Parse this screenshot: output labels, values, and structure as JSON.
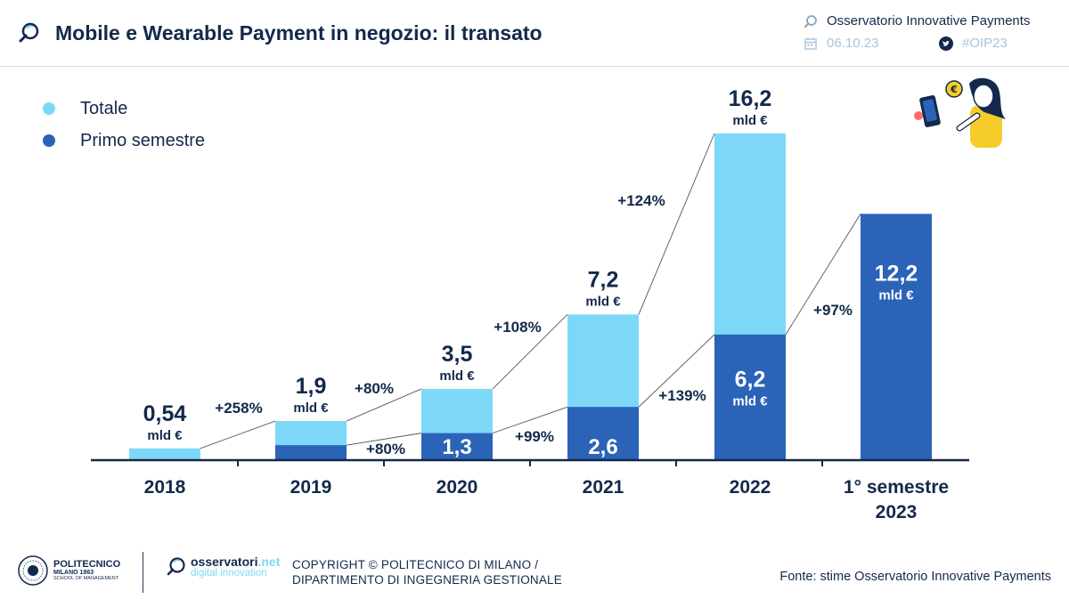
{
  "header": {
    "title": "Mobile e Wearable Payment in negozio: il transato",
    "organization": "Osservatorio Innovative Payments",
    "date": "06.10.23",
    "hashtag": "#OIP23"
  },
  "legend": [
    {
      "label": "Totale",
      "color": "#7dd8f8"
    },
    {
      "label": "Primo semestre",
      "color": "#2a63b8"
    }
  ],
  "colors": {
    "totale": "#7dd8f8",
    "semestre": "#2a63b8",
    "text": "#13294b",
    "axis": "#13294b",
    "connector": "#555555"
  },
  "chart_data": {
    "type": "bar",
    "title": "Mobile e Wearable Payment in negozio: il transato",
    "unit_label": "mld €",
    "categories": [
      "2018",
      "2019",
      "2020",
      "2021",
      "2022",
      "1° semestre 2023"
    ],
    "series": [
      {
        "name": "Totale",
        "values": [
          0.54,
          1.9,
          3.5,
          7.2,
          16.2,
          null
        ]
      },
      {
        "name": "Primo semestre",
        "values": [
          null,
          0.7,
          1.3,
          2.6,
          6.2,
          12.2
        ]
      }
    ],
    "total_labels": [
      "0,54",
      "1,9",
      "3,5",
      "7,2",
      "16,2",
      null
    ],
    "semester_labels": [
      null,
      null,
      "1,3",
      "2,6",
      "6,2",
      "12,2"
    ],
    "growth_totale": [
      {
        "from": 0,
        "to": 1,
        "label": "+258%"
      },
      {
        "from": 1,
        "to": 2,
        "label": "+80%"
      },
      {
        "from": 2,
        "to": 3,
        "label": "+108%"
      },
      {
        "from": 3,
        "to": 4,
        "label": "+124%"
      }
    ],
    "growth_semestre": [
      {
        "from": 1,
        "to": 2,
        "label": "+80%"
      },
      {
        "from": 2,
        "to": 3,
        "label": "+99%"
      },
      {
        "from": 3,
        "to": 4,
        "label": "+139%"
      },
      {
        "from": 4,
        "to": 5,
        "label": "+97%"
      }
    ],
    "ylim": [
      0,
      17.5
    ]
  },
  "footer": {
    "politecnico_name": "POLITECNICO",
    "politecnico_city": "MILANO 1863",
    "politecnico_school": "SCHOOL OF MANAGEMENT",
    "osservatori_name": "osservatori",
    "osservatori_net": ".net",
    "osservatori_sub": "digital innovation",
    "copyright_line1": "COPYRIGHT © POLITECNICO DI MILANO /",
    "copyright_line2": "DIPARTIMENTO DI INGEGNERIA GESTIONALE",
    "source": "Fonte: stime Osservatorio Innovative Payments"
  }
}
